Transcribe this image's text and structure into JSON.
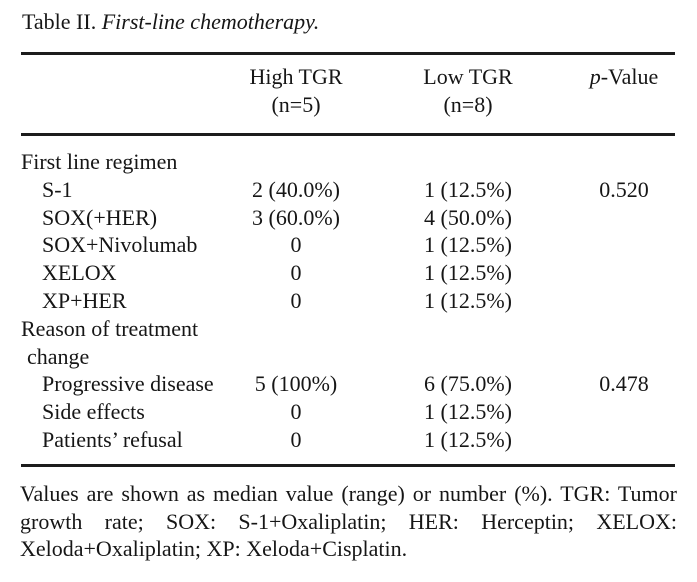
{
  "title": {
    "prefix": "Table II. ",
    "italic": "First-line chemotherapy."
  },
  "header": {
    "high_line1": "High TGR",
    "high_line2": "(n=5)",
    "low_line1": "Low TGR",
    "low_line2": "(n=8)",
    "p_italic": "p",
    "p_rest": "-Value"
  },
  "rows": [
    {
      "label": "First line regimen",
      "high": "",
      "low": "",
      "p": ""
    },
    {
      "label": "S-1",
      "high": "2 (40.0%)",
      "low": "1 (12.5%)",
      "p": "0.520"
    },
    {
      "label": "SOX(+HER)",
      "high": "3 (60.0%)",
      "low": "4 (50.0%)",
      "p": ""
    },
    {
      "label": "SOX+Nivolumab",
      "high": "0",
      "low": "1 (12.5%)",
      "p": ""
    },
    {
      "label": "XELOX",
      "high": "0",
      "low": "1 (12.5%)",
      "p": ""
    },
    {
      "label": "XP+HER",
      "high": "0",
      "low": "1 (12.5%)",
      "p": ""
    },
    {
      "label": "Reason of treatment",
      "high": "",
      "low": "",
      "p": ""
    },
    {
      "label": "change",
      "high": "",
      "low": "",
      "p": ""
    },
    {
      "label": "Progressive disease",
      "high": "5 (100%)",
      "low": "6 (75.0%)",
      "p": "0.478"
    },
    {
      "label": "Side effects",
      "high": "0",
      "low": "1 (12.5%)",
      "p": ""
    },
    {
      "label": "Patients’ refusal",
      "high": "0",
      "low": "1 (12.5%)",
      "p": ""
    }
  ],
  "footnote": {
    "lines": [
      "Values are shown as median value (range) or number (%). TGR: Tumor",
      "growth rate; SOX: S-1+Oxaliplatin; HER: Herceptin; XELOX:",
      "Xeloda+Oxaliplatin; XP: Xeloda+Cisplatin."
    ]
  },
  "colors": {
    "background": "#ffffff",
    "text": "#161616",
    "rule": "#1c1c1c"
  }
}
